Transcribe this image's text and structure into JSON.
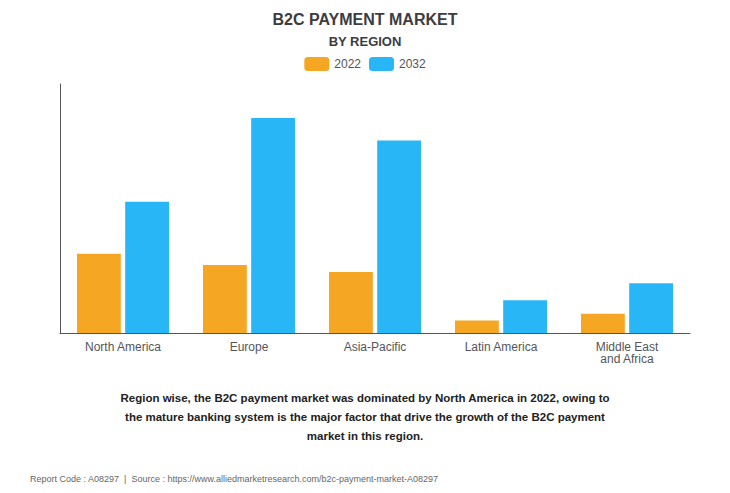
{
  "chart_data": {
    "type": "bar",
    "title": "B2C PAYMENT MARKET",
    "subtitle": "BY REGION",
    "categories": [
      "North America",
      "Europe",
      "Asia-Pacific",
      "Latin America",
      "Middle East\nand Africa"
    ],
    "series": [
      {
        "name": "2022",
        "color": "#F5A623",
        "values": [
          3.5,
          3.0,
          2.7,
          0.55,
          0.85
        ]
      },
      {
        "name": "2032",
        "color": "#29B6F6",
        "values": [
          5.8,
          9.5,
          8.5,
          1.45,
          2.2
        ]
      }
    ],
    "ylim": [
      0,
      11
    ],
    "yticks": [],
    "grid": false,
    "legend": "top",
    "tick_labels": "x",
    "annotation": "Region wise, the B2C payment market was dominated by North America in 2022, owing to\nthe mature banking system is the major factor that drive the growth of the B2C payment\nmarket in this region.",
    "footer": "Report Code : A08297  |  Source : https://www.alliedmarketresearch.com/b2c-payment-market-A08297"
  }
}
